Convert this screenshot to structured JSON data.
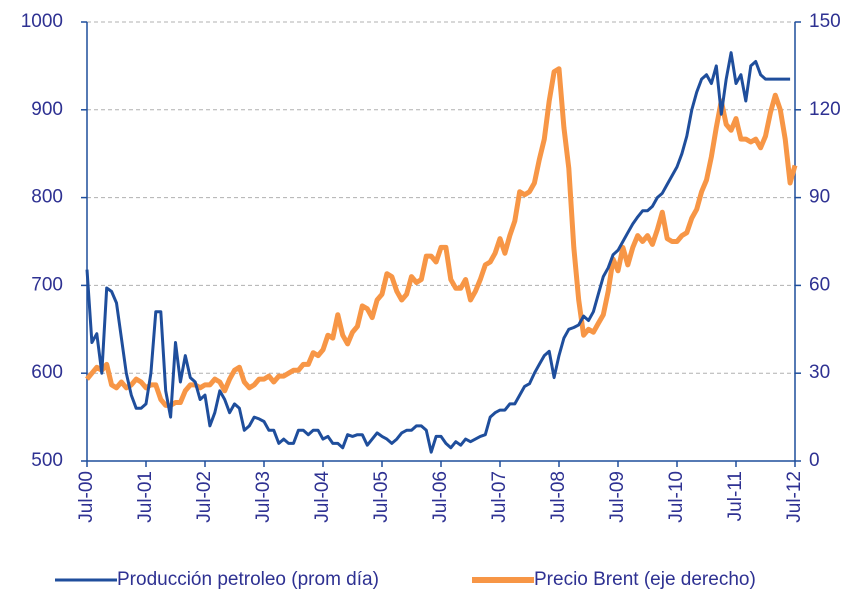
{
  "chart_data": {
    "type": "line",
    "categories": [
      "Jul-00",
      null,
      null,
      null,
      null,
      null,
      null,
      null,
      null,
      null,
      null,
      null,
      "Jul-01",
      null,
      null,
      null,
      null,
      null,
      null,
      null,
      null,
      null,
      null,
      null,
      "Jul-02",
      null,
      null,
      null,
      null,
      null,
      null,
      null,
      null,
      null,
      null,
      null,
      "Jul-03",
      null,
      null,
      null,
      null,
      null,
      null,
      null,
      null,
      null,
      null,
      null,
      "Jul-04",
      null,
      null,
      null,
      null,
      null,
      null,
      null,
      null,
      null,
      null,
      null,
      "Jul-05",
      null,
      null,
      null,
      null,
      null,
      null,
      null,
      null,
      null,
      null,
      null,
      "Jul-06",
      null,
      null,
      null,
      null,
      null,
      null,
      null,
      null,
      null,
      null,
      null,
      "Jul-07",
      null,
      null,
      null,
      null,
      null,
      null,
      null,
      null,
      null,
      null,
      null,
      "Jul-08",
      null,
      null,
      null,
      null,
      null,
      null,
      null,
      null,
      null,
      null,
      null,
      "Jul-09",
      null,
      null,
      null,
      null,
      null,
      null,
      null,
      null,
      null,
      null,
      null,
      "Jul-10",
      null,
      null,
      null,
      null,
      null,
      null,
      null,
      null,
      null,
      null,
      null,
      "Jul-11",
      null,
      null,
      null,
      null,
      null,
      null,
      null,
      null,
      null,
      null,
      null,
      "Jul-12"
    ],
    "series": [
      {
        "name": "Producción petroleo (prom día)",
        "color": "#1f4e9c",
        "values": [
          718,
          635,
          645,
          600,
          697,
          693,
          680,
          640,
          600,
          575,
          560,
          560,
          565,
          600,
          670,
          670,
          580,
          550,
          635,
          590,
          620,
          595,
          590,
          570,
          575,
          540,
          555,
          580,
          570,
          555,
          565,
          560,
          535,
          540,
          550,
          548,
          545,
          535,
          535,
          520,
          525,
          520,
          520,
          535,
          535,
          530,
          535,
          535,
          525,
          528,
          520,
          520,
          515,
          530,
          528,
          530,
          530,
          518,
          525,
          532,
          528,
          525,
          520,
          525,
          532,
          535,
          535,
          540,
          540,
          535,
          510,
          528,
          528,
          520,
          515,
          522,
          518,
          525,
          522,
          525,
          528,
          530,
          550,
          555,
          558,
          558,
          565,
          565,
          575,
          585,
          588,
          600,
          610,
          620,
          625,
          595,
          620,
          640,
          650,
          652,
          655,
          665,
          660,
          670,
          690,
          710,
          720,
          735,
          740,
          750,
          760,
          770,
          778,
          785,
          785,
          790,
          800,
          805,
          815,
          825,
          835,
          850,
          870,
          900,
          920,
          935,
          940,
          930,
          950,
          895,
          935,
          965,
          930,
          940,
          910,
          950,
          955,
          940,
          935,
          935,
          935,
          935,
          935,
          935,
          null
        ]
      },
      {
        "name": "Precio Brent (eje derecho)",
        "color": "#f79646",
        "axis": "y2",
        "values": [
          28,
          30,
          32,
          31,
          33,
          26,
          25,
          27,
          25,
          26,
          28,
          27,
          25,
          26,
          26,
          21,
          19,
          19,
          20,
          20,
          24,
          26,
          26,
          25,
          26,
          26,
          28,
          27,
          24,
          28,
          31,
          32,
          27,
          25,
          26,
          28,
          28,
          29,
          27,
          29,
          29,
          30,
          31,
          31,
          33,
          33,
          37,
          36,
          38,
          43,
          42,
          50,
          43,
          40,
          44,
          46,
          53,
          52,
          49,
          55,
          57,
          64,
          63,
          58,
          55,
          57,
          63,
          61,
          62,
          70,
          70,
          68,
          73,
          73,
          62,
          59,
          59,
          62,
          55,
          58,
          62,
          67,
          68,
          71,
          76,
          71,
          77,
          82,
          92,
          91,
          92,
          95,
          103,
          110,
          123,
          133,
          134,
          114,
          100,
          73,
          55,
          43,
          45,
          44,
          47,
          50,
          58,
          69,
          65,
          73,
          67,
          73,
          77,
          75,
          77,
          74,
          79,
          85,
          76,
          75,
          75,
          77,
          78,
          83,
          86,
          92,
          96,
          104,
          114,
          123,
          115,
          113,
          117,
          110,
          110,
          109,
          110,
          107,
          111,
          119,
          125,
          120,
          110,
          95,
          101
        ]
      }
    ],
    "ylim": [
      500,
      1000
    ],
    "yticks": [
      500,
      600,
      700,
      800,
      900,
      1000
    ],
    "y2lim": [
      0,
      150
    ],
    "y2ticks": [
      0,
      30,
      60,
      90,
      120,
      150
    ],
    "grid": true,
    "legend": "bottom"
  }
}
